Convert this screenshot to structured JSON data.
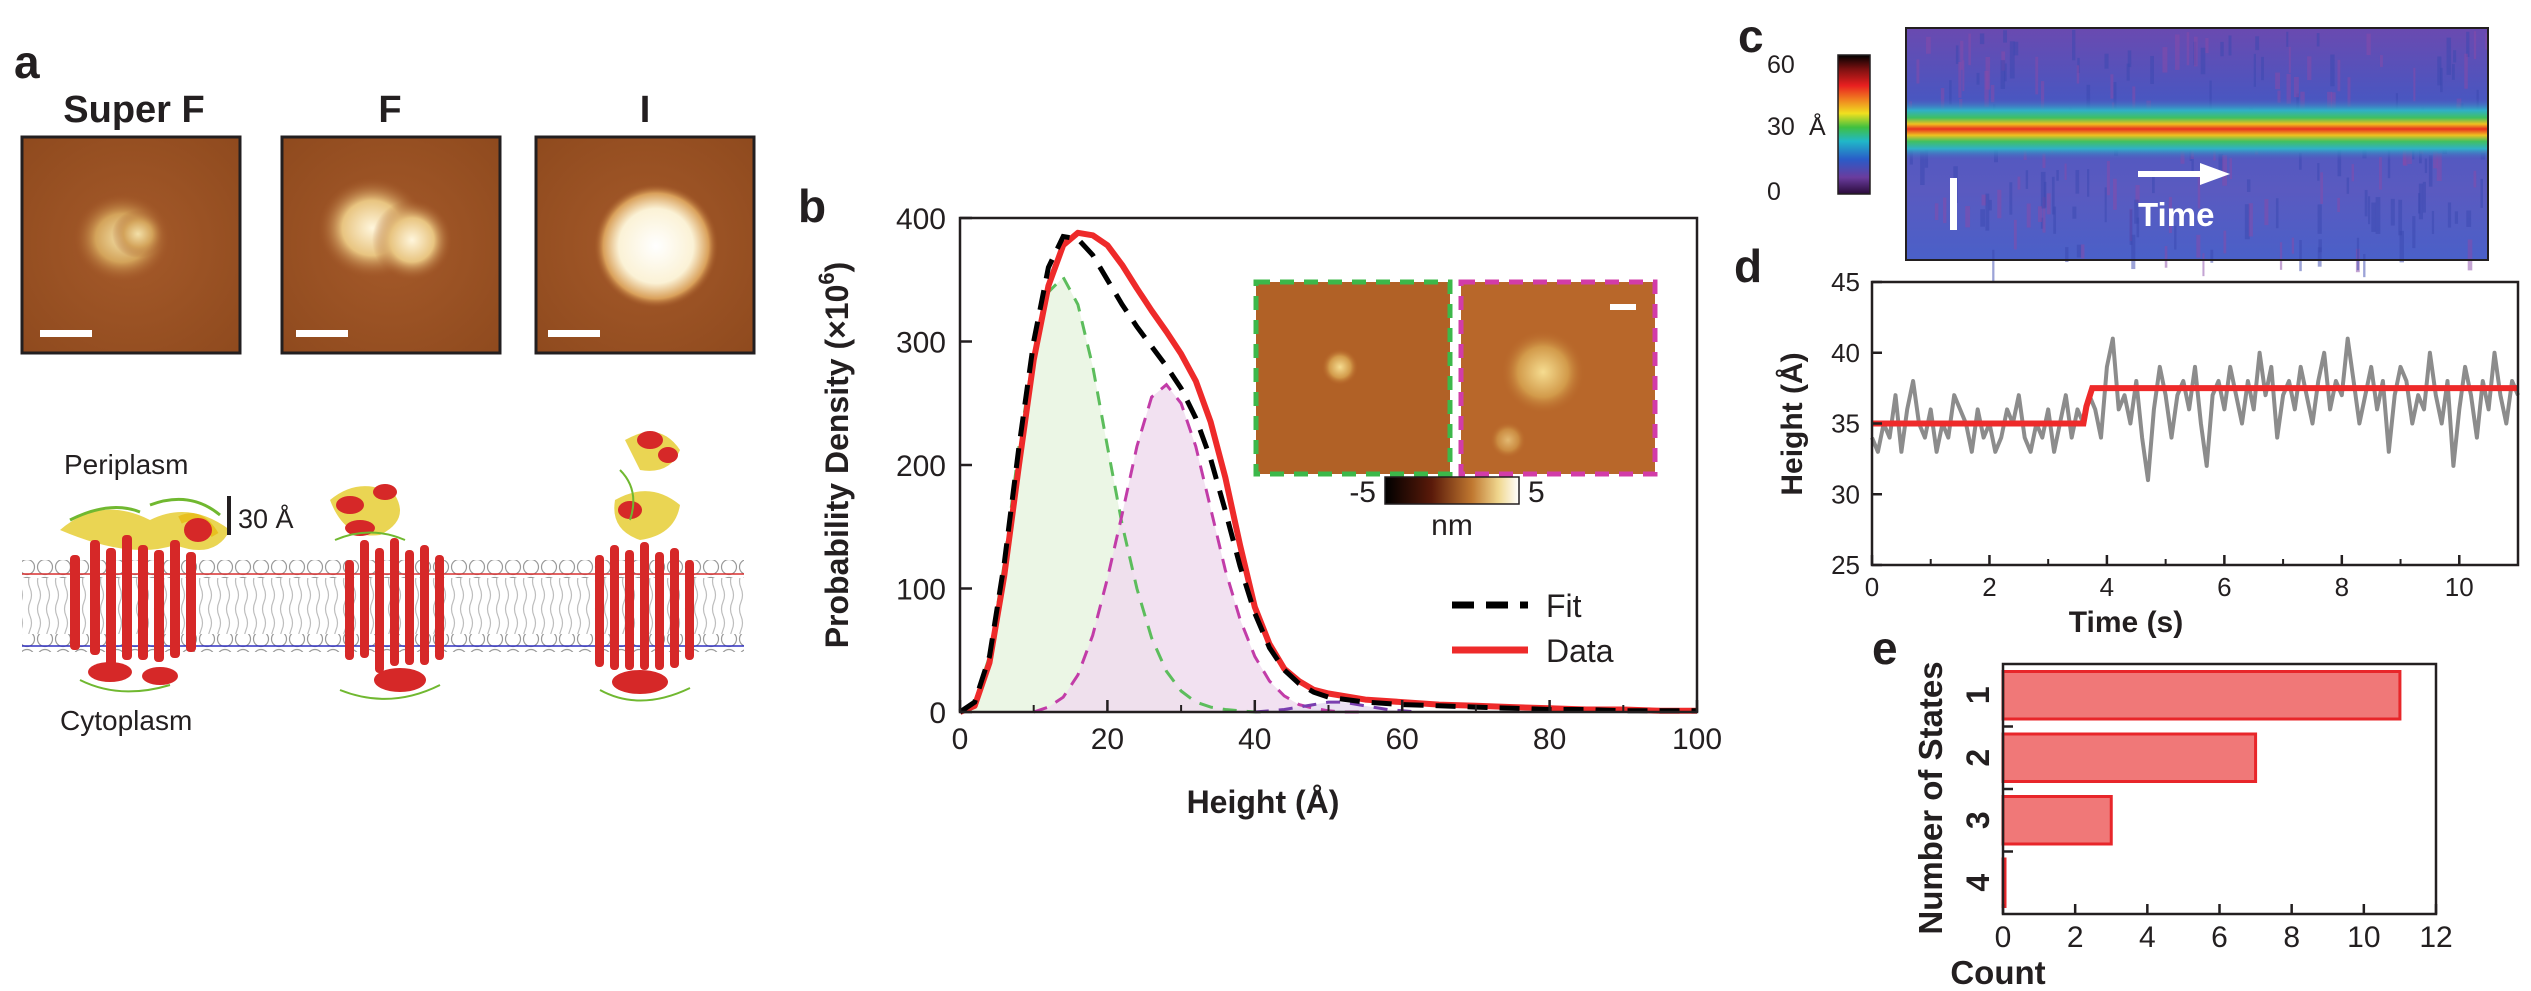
{
  "panel_labels": {
    "a": "a",
    "b": "b",
    "c": "c",
    "d": "d",
    "e": "e"
  },
  "panel_a": {
    "titles": [
      "Super F",
      "F",
      "I"
    ],
    "periplasm": "Periplasm",
    "cytoplasm": "Cytoplasm",
    "scale_label": "30 Å"
  },
  "panel_b_inset": {
    "colorbar_min": "-5",
    "colorbar_max": "5",
    "colorbar_unit": "nm"
  },
  "panel_c": {
    "colorbar_ticks": [
      "60",
      "30",
      "0"
    ],
    "colorbar_unit": "Å",
    "arrow_label": "Time"
  },
  "colors": {
    "fit": "#000000",
    "data": "#ee2a2a",
    "green_component": "#5cbd5c",
    "magenta_component": "#c23ca8",
    "purple_component": "#7a3fb0",
    "bar_fill": "#f07878",
    "bar_edge": "#e8262a",
    "trace_raw": "#8c8c8c",
    "trace_step": "#ee2a2a"
  },
  "chart_data": [
    {
      "type": "line",
      "panel": "b",
      "xlabel": "Height (Å)",
      "ylabel_main": "Probability Density (×10",
      "ylabel_exp": "6",
      "ylabel_close": ")",
      "xlim": [
        0,
        100
      ],
      "ylim": [
        0,
        400
      ],
      "xticks": [
        0,
        20,
        40,
        60,
        80,
        100
      ],
      "yticks": [
        0,
        100,
        200,
        300,
        400
      ],
      "legend": [
        {
          "name": "Fit",
          "style": "dashed"
        },
        {
          "name": "Data",
          "style": "solid"
        }
      ],
      "legend_position": "right",
      "series": [
        {
          "name": "Data",
          "x": [
            0,
            2,
            4,
            6,
            8,
            10,
            12,
            14,
            16,
            18,
            20,
            22,
            24,
            26,
            28,
            30,
            32,
            34,
            36,
            38,
            40,
            42,
            44,
            46,
            48,
            50,
            55,
            60,
            65,
            70,
            75,
            80,
            85,
            90,
            95,
            100
          ],
          "y": [
            0,
            5,
            40,
            110,
            200,
            285,
            345,
            378,
            388,
            386,
            378,
            362,
            343,
            325,
            308,
            290,
            268,
            235,
            190,
            135,
            85,
            55,
            35,
            25,
            18,
            15,
            10,
            8,
            6,
            5,
            4,
            3,
            2,
            2,
            1,
            1
          ]
        },
        {
          "name": "Fit",
          "x": [
            0,
            2,
            4,
            6,
            8,
            10,
            12,
            14,
            16,
            18,
            20,
            22,
            24,
            26,
            28,
            30,
            32,
            34,
            36,
            38,
            40,
            42,
            44,
            46,
            48,
            50,
            55,
            60,
            65,
            70,
            75,
            80,
            85,
            90,
            95,
            100
          ],
          "y": [
            0,
            8,
            45,
            120,
            215,
            300,
            360,
            385,
            383,
            370,
            350,
            330,
            312,
            296,
            280,
            262,
            238,
            205,
            163,
            118,
            80,
            52,
            34,
            23,
            16,
            12,
            8,
            6,
            5,
            4,
            3,
            2,
            2,
            1,
            1,
            1
          ]
        },
        {
          "name": "",
          "x": [
            0,
            2,
            4,
            6,
            8,
            10,
            12,
            14,
            16,
            18,
            20,
            22,
            24,
            26,
            28,
            30,
            32,
            34,
            36,
            38,
            40,
            42
          ],
          "y": [
            0,
            8,
            45,
            120,
            215,
            290,
            340,
            352,
            330,
            280,
            215,
            152,
            100,
            60,
            33,
            17,
            8,
            4,
            2,
            1,
            0,
            0
          ]
        },
        {
          "name": "",
          "x": [
            10,
            12,
            14,
            16,
            18,
            20,
            22,
            24,
            26,
            28,
            30,
            32,
            34,
            36,
            38,
            40,
            42,
            44,
            46,
            48,
            50,
            52,
            55
          ],
          "y": [
            0,
            4,
            12,
            30,
            62,
            108,
            160,
            215,
            255,
            265,
            250,
            215,
            165,
            115,
            75,
            45,
            25,
            13,
            6,
            3,
            1,
            0,
            0
          ]
        },
        {
          "name": "",
          "x": [
            40,
            42,
            44,
            46,
            48,
            50,
            52,
            54,
            56,
            58,
            60,
            62
          ],
          "y": [
            0,
            1,
            2,
            4,
            6,
            8,
            8,
            6,
            4,
            2,
            1,
            0
          ]
        }
      ]
    },
    {
      "type": "heatmap",
      "panel": "c",
      "colorbar_range": [
        0,
        60
      ],
      "band_height_A": 33
    },
    {
      "type": "line",
      "panel": "d",
      "xlabel": "Time (s)",
      "ylabel": "Height (Å)",
      "xlim": [
        0,
        11
      ],
      "ylim": [
        25,
        45
      ],
      "xticks": [
        0,
        2,
        4,
        6,
        8,
        10
      ],
      "yticks": [
        25,
        30,
        35,
        40,
        45
      ],
      "series": [
        {
          "name": "",
          "x": [
            0,
            0.1,
            0.2,
            0.3,
            0.4,
            0.5,
            0.6,
            0.7,
            0.8,
            0.9,
            1.0,
            1.1,
            1.2,
            1.3,
            1.4,
            1.5,
            1.6,
            1.7,
            1.8,
            1.9,
            2.0,
            2.1,
            2.2,
            2.3,
            2.4,
            2.5,
            2.6,
            2.7,
            2.8,
            2.9,
            3.0,
            3.1,
            3.2,
            3.3,
            3.4,
            3.5,
            3.6,
            3.7,
            3.8,
            3.9,
            4.0,
            4.1,
            4.2,
            4.3,
            4.4,
            4.5,
            4.6,
            4.7,
            4.8,
            4.9,
            5.0,
            5.1,
            5.2,
            5.3,
            5.4,
            5.5,
            5.6,
            5.7,
            5.8,
            5.9,
            6.0,
            6.1,
            6.2,
            6.3,
            6.4,
            6.5,
            6.6,
            6.7,
            6.8,
            6.9,
            7.0,
            7.1,
            7.2,
            7.3,
            7.4,
            7.5,
            7.6,
            7.7,
            7.8,
            7.9,
            8.0,
            8.1,
            8.2,
            8.3,
            8.4,
            8.5,
            8.6,
            8.7,
            8.8,
            8.9,
            9.0,
            9.1,
            9.2,
            9.3,
            9.4,
            9.5,
            9.6,
            9.7,
            9.8,
            9.9,
            10.0,
            10.1,
            10.2,
            10.3,
            10.4,
            10.5,
            10.6,
            10.7,
            10.8,
            10.9,
            11.0
          ],
          "y": [
            34,
            33,
            35,
            34,
            37,
            33,
            36,
            38,
            35,
            34,
            36,
            33,
            35,
            34,
            37,
            36,
            35,
            33,
            36,
            34,
            35,
            33,
            34,
            36,
            35,
            37,
            34,
            33,
            35,
            34,
            36,
            33,
            35,
            37,
            34,
            36,
            35,
            37,
            36,
            34,
            39,
            41,
            36,
            37,
            35,
            38,
            34,
            31,
            36,
            39,
            37,
            34,
            37,
            38,
            36,
            39,
            35,
            32,
            37,
            38,
            36,
            39,
            37,
            35,
            38,
            36,
            40,
            37,
            39,
            34,
            37,
            38,
            36,
            39,
            37,
            35,
            38,
            40,
            36,
            38,
            37,
            41,
            38,
            35,
            37,
            39,
            36,
            38,
            33,
            37,
            39,
            38,
            35,
            37,
            36,
            40,
            37,
            35,
            38,
            32,
            36,
            39,
            37,
            34,
            38,
            36,
            40,
            37,
            35,
            38,
            37
          ]
        },
        {
          "name": "",
          "x": [
            0,
            3.6,
            3.65,
            3.75,
            11
          ],
          "y": [
            35,
            35,
            36.2,
            37.5,
            37.5
          ]
        }
      ]
    },
    {
      "type": "bar",
      "panel": "e",
      "orientation": "horizontal",
      "categories": [
        "1",
        "2",
        "3",
        "4"
      ],
      "values": [
        11,
        7,
        3,
        0
      ],
      "xlabel": "Count",
      "ylabel": "Number of States",
      "xlim": [
        0,
        12
      ],
      "xticks": [
        0,
        2,
        4,
        6,
        8,
        10,
        12
      ]
    }
  ]
}
